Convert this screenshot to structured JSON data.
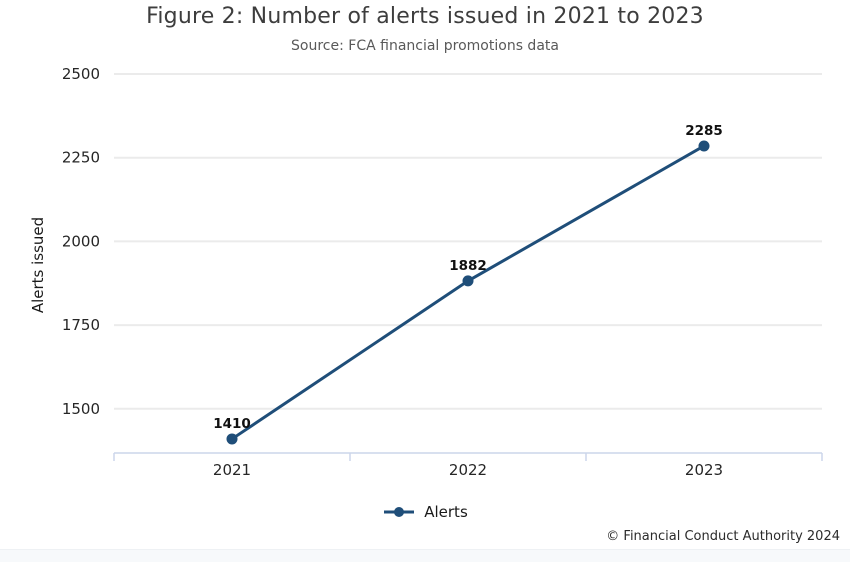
{
  "header": {
    "title": "Figure 2: Number of alerts issued in 2021 to 2023",
    "subtitle": "Source: FCA financial promotions data"
  },
  "footer": {
    "copyright": "© Financial Conduct Authority 2024"
  },
  "chart_data": {
    "type": "line",
    "title": "Figure 2: Number of alerts issued in 2021 to 2023",
    "subtitle": "Source: FCA financial promotions data",
    "categories": [
      "2021",
      "2022",
      "2023"
    ],
    "series": [
      {
        "name": "Alerts",
        "values": [
          1410,
          1882,
          2285
        ]
      }
    ],
    "xlabel": "",
    "ylabel": "Alerts issued",
    "yticks": [
      1500,
      1750,
      2000,
      2250,
      2500
    ],
    "ylim": [
      1368,
      2500
    ],
    "grid": true,
    "data_labels": true,
    "legend_position": "bottom",
    "colors": {
      "line": "#1f4e79",
      "marker": "#1f4e79",
      "grid": "#ebebeb",
      "axis": "#ccd6ea",
      "data_label": "#111111",
      "tick_label": "#262626"
    }
  }
}
